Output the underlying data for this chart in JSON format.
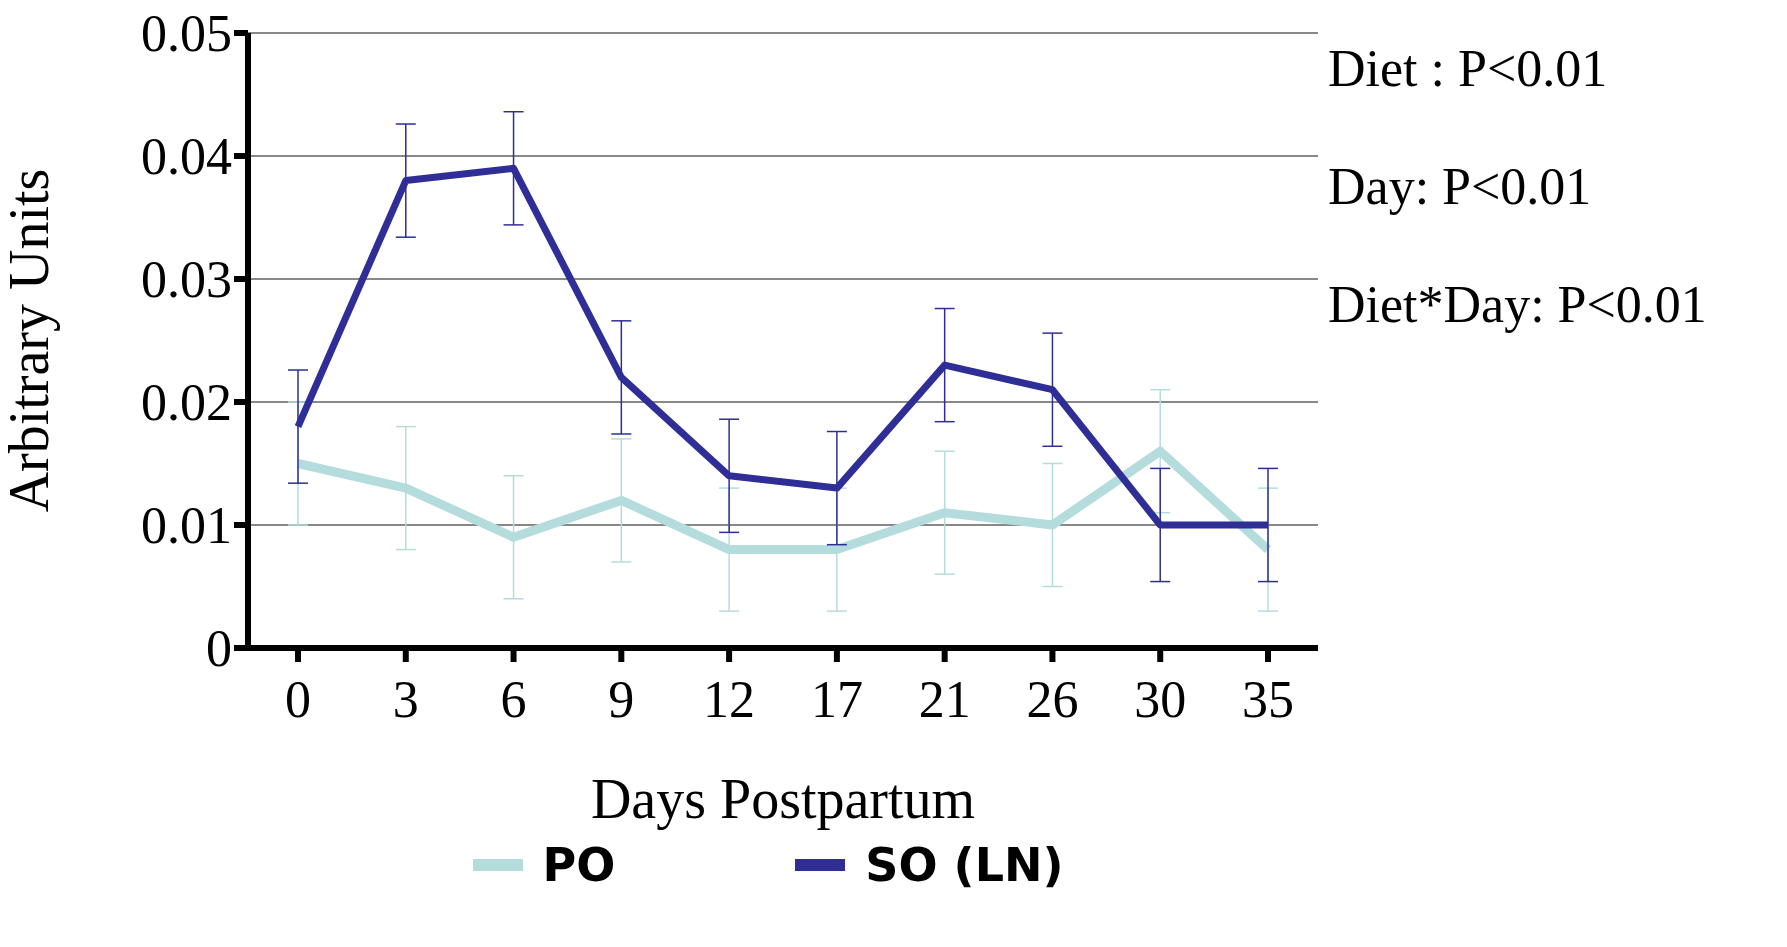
{
  "chart_data": {
    "type": "line",
    "xlabel": "Days Postpartum",
    "ylabel": "Arbitrary Units",
    "categories": [
      "0",
      "3",
      "6",
      "9",
      "12",
      "17",
      "21",
      "26",
      "30",
      "35"
    ],
    "series": [
      {
        "name": "PO",
        "color": "#b5dcdd",
        "values": [
          0.015,
          0.013,
          0.009,
          0.012,
          0.008,
          0.008,
          0.011,
          0.01,
          0.016,
          0.008
        ],
        "errors": [
          0.005,
          0.005,
          0.005,
          0.005,
          0.005,
          0.005,
          0.005,
          0.005,
          0.005,
          0.005
        ]
      },
      {
        "name": "SO (LN)",
        "color": "#2e2e96",
        "values": [
          0.018,
          0.038,
          0.039,
          0.022,
          0.014,
          0.013,
          0.023,
          0.021,
          0.01,
          0.01
        ],
        "errors": [
          0.0046,
          0.0046,
          0.0046,
          0.0046,
          0.0046,
          0.0046,
          0.0046,
          0.0046,
          0.0046,
          0.0046
        ]
      }
    ],
    "ylim": [
      0,
      0.05
    ],
    "yticks": [
      0,
      0.01,
      0.02,
      0.03,
      0.04,
      0.05
    ],
    "grid": "y",
    "legend": "bottom",
    "marker": "none",
    "line_style": "solid",
    "annotations": [
      "Diet : P<0.01",
      "Day: P<0.01",
      "Diet*Day: P<0.01"
    ]
  }
}
